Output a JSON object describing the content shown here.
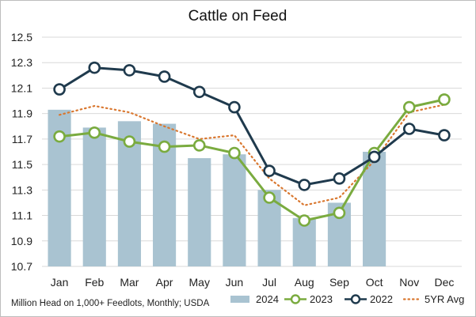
{
  "chart_data": {
    "type": "bar",
    "title": "Cattle on Feed",
    "footnote": "Million Head on 1,000+ Feedlots, Monthly; USDA",
    "categories": [
      "Jan",
      "Feb",
      "Mar",
      "Apr",
      "May",
      "Jun",
      "Jul",
      "Aug",
      "Sep",
      "Oct",
      "Nov",
      "Dec"
    ],
    "ylim": [
      10.7,
      12.5
    ],
    "yticks": [
      "10.7",
      "10.9",
      "11.1",
      "11.3",
      "11.5",
      "11.7",
      "11.9",
      "12.1",
      "12.3",
      "12.5"
    ],
    "grid": true,
    "legend_position": "bottom-right",
    "series": [
      {
        "name": "2024",
        "type": "bar",
        "color": "#a9c3d1",
        "values": [
          11.93,
          11.79,
          11.84,
          11.82,
          11.55,
          11.58,
          11.3,
          11.08,
          11.2,
          11.6,
          null,
          null
        ]
      },
      {
        "name": "2023",
        "type": "line",
        "color": "#7aab3f",
        "marker": "circle",
        "values": [
          11.72,
          11.75,
          11.68,
          11.64,
          11.65,
          11.59,
          11.24,
          11.06,
          11.12,
          11.59,
          11.95,
          12.01
        ]
      },
      {
        "name": "2022",
        "type": "line",
        "color": "#1f3a4d",
        "marker": "circle",
        "values": [
          12.09,
          12.26,
          12.24,
          12.19,
          12.07,
          11.95,
          11.45,
          11.34,
          11.39,
          11.56,
          11.78,
          11.73
        ]
      },
      {
        "name": "5YR Avg",
        "type": "dotted-line",
        "color": "#d9772f",
        "values": [
          11.89,
          11.96,
          11.91,
          11.8,
          11.7,
          11.73,
          11.39,
          11.18,
          11.24,
          11.53,
          11.91,
          11.97
        ]
      }
    ]
  }
}
